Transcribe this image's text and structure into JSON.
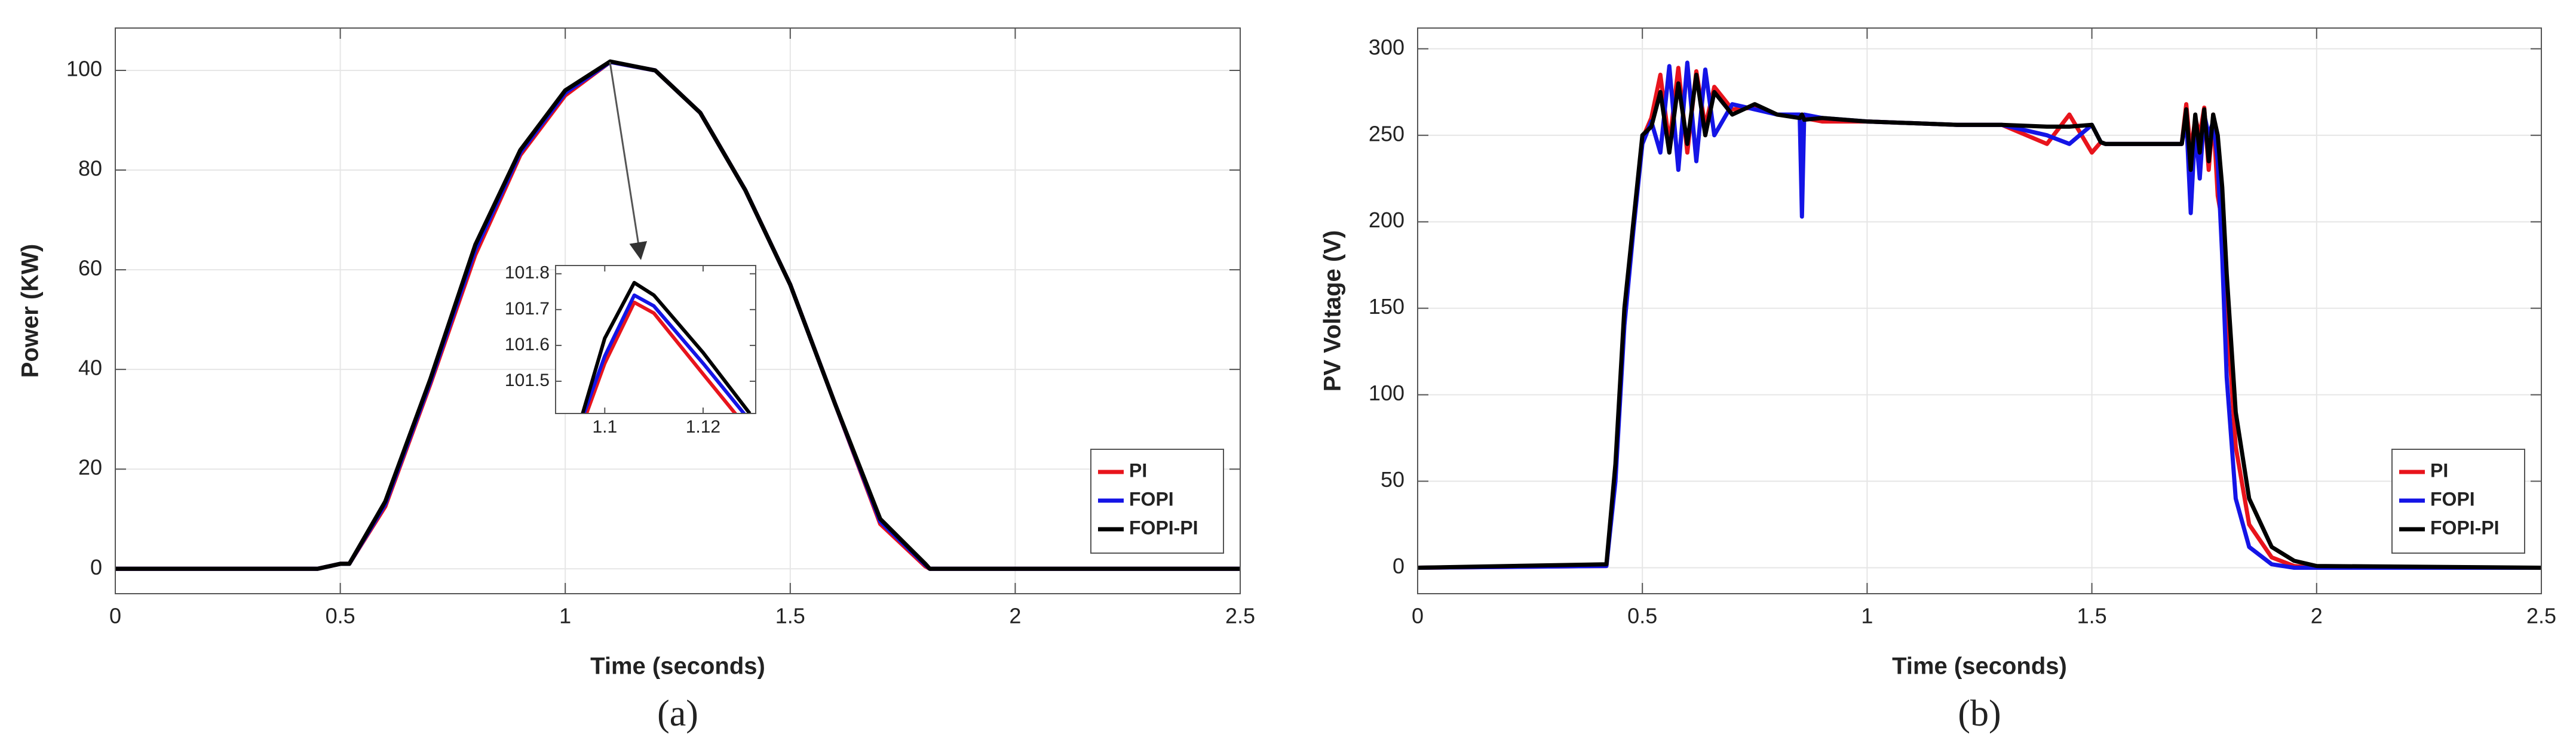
{
  "chart_data": [
    {
      "type": "line",
      "caption": "(a)",
      "xlabel": "Time (seconds)",
      "ylabel": "Power (KW)",
      "xlim": [
        0,
        2.5
      ],
      "ylim": [
        -5,
        108.5
      ],
      "xticks": [
        0,
        0.5,
        1,
        1.5,
        2,
        2.5
      ],
      "yticks": [
        0,
        20,
        40,
        60,
        80,
        100
      ],
      "grid": true,
      "legend": "lower right",
      "x": [
        0,
        0.45,
        0.5,
        0.52,
        0.6,
        0.7,
        0.8,
        0.9,
        1.0,
        1.1,
        1.2,
        1.3,
        1.4,
        1.5,
        1.6,
        1.7,
        1.8,
        1.81,
        2.5
      ],
      "series": [
        {
          "name": "PI",
          "color": "#e8141c",
          "values": [
            0,
            0,
            1,
            1,
            12.5,
            37,
            63,
            83,
            95,
            101.7,
            100,
            91.5,
            76,
            57,
            33,
            9,
            0.5,
            0,
            0
          ]
        },
        {
          "name": "FOPI",
          "color": "#1414e6",
          "values": [
            0,
            0,
            1,
            1,
            13,
            37.5,
            64,
            83.5,
            95.5,
            101.7,
            100,
            91.5,
            76,
            57,
            33,
            9.5,
            0.8,
            0,
            0
          ]
        },
        {
          "name": "FOPI-PI",
          "color": "#000000",
          "values": [
            0,
            0,
            1,
            1,
            13.5,
            38,
            65,
            84,
            96,
            101.8,
            100,
            91.5,
            76,
            57,
            33,
            10,
            1,
            0,
            0
          ]
        }
      ],
      "inset": {
        "xlim": [
          1.09,
          1.1307
        ],
        "ylim": [
          101.41,
          101.823
        ],
        "xticks": [
          1.1,
          1.12
        ],
        "yticks": [
          101.5,
          101.6,
          101.7,
          101.8
        ],
        "x": [
          1.0955,
          1.1,
          1.106,
          1.11,
          1.12,
          1.1295
        ],
        "series": [
          {
            "color": "#e8141c",
            "values": [
              101.38,
              101.55,
              101.72,
              101.69,
              101.52,
              101.36
            ]
          },
          {
            "color": "#1414e6",
            "values": [
              101.4,
              101.57,
              101.74,
              101.71,
              101.55,
              101.39
            ]
          },
          {
            "color": "#000000",
            "values": [
              101.41,
              101.62,
              101.775,
              101.74,
              101.58,
              101.41
            ]
          }
        ]
      }
    },
    {
      "type": "line",
      "caption": "(b)",
      "xlabel": "Time (seconds)",
      "ylabel": "PV Voltage (V)",
      "xlim": [
        0,
        2.5
      ],
      "ylim": [
        -15,
        312
      ],
      "xticks": [
        0,
        0.5,
        1,
        1.5,
        2,
        2.5
      ],
      "yticks": [
        0,
        50,
        100,
        150,
        200,
        250,
        300
      ],
      "grid": true,
      "legend": "lower right",
      "x": [
        0,
        0.42,
        0.44,
        0.46,
        0.48,
        0.5,
        0.52,
        0.54,
        0.56,
        0.58,
        0.6,
        0.62,
        0.64,
        0.66,
        0.7,
        0.75,
        0.8,
        0.85,
        0.855,
        0.86,
        0.9,
        1.0,
        1.1,
        1.2,
        1.3,
        1.4,
        1.45,
        1.5,
        1.52,
        1.53,
        1.6,
        1.7,
        1.71,
        1.72,
        1.73,
        1.74,
        1.75,
        1.76,
        1.77,
        1.78,
        1.79,
        1.8,
        1.82,
        1.85,
        1.9,
        1.95,
        2.0,
        2.5
      ],
      "series": [
        {
          "name": "PI",
          "color": "#e8141c",
          "values": [
            0,
            1,
            55,
            145,
            198,
            248,
            260,
            285,
            245,
            289,
            240,
            287,
            255,
            278,
            265,
            266,
            262,
            261,
            262,
            260,
            258,
            258,
            257,
            256,
            256,
            245,
            262,
            240,
            246,
            245,
            245,
            245,
            268,
            240,
            260,
            250,
            266,
            230,
            262,
            215,
            200,
            150,
            70,
            25,
            6,
            1,
            0,
            0
          ]
        },
        {
          "name": "FOPI",
          "color": "#1414e6",
          "values": [
            0,
            1,
            50,
            140,
            195,
            245,
            258,
            240,
            290,
            230,
            292,
            235,
            288,
            250,
            268,
            265,
            262,
            262,
            203,
            262,
            260,
            258,
            257,
            256,
            256,
            250,
            245,
            256,
            246,
            245,
            245,
            245,
            260,
            205,
            255,
            225,
            262,
            250,
            258,
            235,
            180,
            110,
            40,
            12,
            2,
            0,
            0,
            0
          ]
        },
        {
          "name": "FOPI-PI",
          "color": "#000000",
          "values": [
            0,
            2,
            60,
            150,
            200,
            250,
            255,
            275,
            240,
            280,
            245,
            285,
            250,
            275,
            262,
            268,
            262,
            260,
            262,
            259,
            260,
            258,
            257,
            256,
            256,
            255,
            255,
            256,
            246,
            245,
            245,
            245,
            265,
            230,
            262,
            240,
            265,
            235,
            262,
            250,
            220,
            170,
            90,
            40,
            12,
            4,
            1,
            0
          ]
        }
      ]
    }
  ]
}
